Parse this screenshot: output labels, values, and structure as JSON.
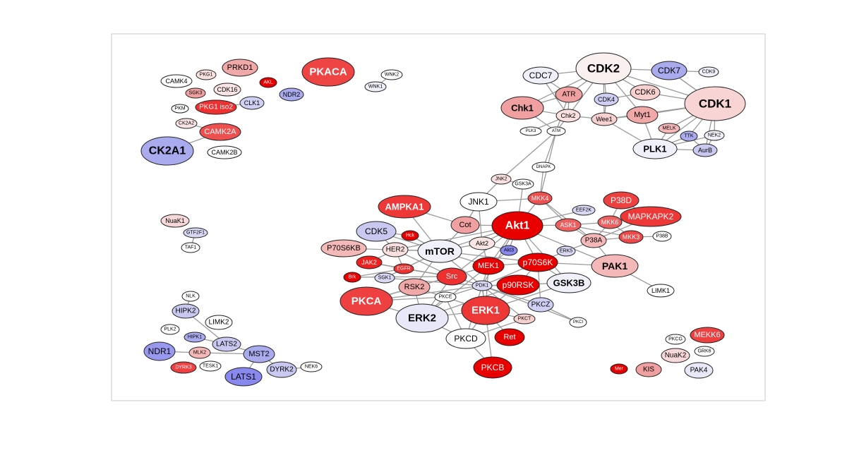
{
  "colors": {
    "background": "#ffffff",
    "frame": "#c8c8c8",
    "edge": "#9a9a9a",
    "node_stroke": "#222222",
    "strong_red": "#e80000",
    "red": "#ee3030",
    "salmon": "#f0a0a0",
    "light_pink": "#f8d8d8",
    "white": "#ffffff",
    "light_blue": "#d8d8f4",
    "blue": "#aaaaee",
    "strong_blue": "#8888ee"
  },
  "nodes": [
    {
      "id": "PKACA",
      "fill": "#ee4444"
    },
    {
      "id": "PRKD1",
      "fill": "#f0a8a8"
    },
    {
      "id": "PKG1",
      "fill": "#fbe0e0"
    },
    {
      "id": "CAMK4",
      "fill": "#ffffff"
    },
    {
      "id": "AKL",
      "fill": "#e80000"
    },
    {
      "id": "SGK3",
      "fill": "#f0a0a0"
    },
    {
      "id": "CDK16",
      "fill": "#fbe4e4"
    },
    {
      "id": "NDR2",
      "fill": "#aaaaee"
    },
    {
      "id": "WNK2",
      "fill": "#ffffff"
    },
    {
      "id": "WNK1",
      "fill": "#f0f0fa"
    },
    {
      "id": "PKM",
      "fill": "#ffffff"
    },
    {
      "id": "PKG1 iso2",
      "fill": "#ee3030"
    },
    {
      "id": "CLK1",
      "fill": "#d0d0f4"
    },
    {
      "id": "CK2A2",
      "fill": "#fbe4e4"
    },
    {
      "id": "CAMK2A",
      "fill": "#ee5050"
    },
    {
      "id": "CK2A1",
      "fill": "#aaaaee"
    },
    {
      "id": "CAMK2B",
      "fill": "#ffffff"
    },
    {
      "id": "CDK2",
      "fill": "#fbf0f0"
    },
    {
      "id": "CDC7",
      "fill": "#f0f0fa"
    },
    {
      "id": "CDK7",
      "fill": "#aaaaee"
    },
    {
      "id": "CDK9",
      "fill": "#f0f0fa"
    },
    {
      "id": "ATR",
      "fill": "#f0a0a0"
    },
    {
      "id": "CDK4",
      "fill": "#d0d0f4"
    },
    {
      "id": "CDK6",
      "fill": "#f8d0d0"
    },
    {
      "id": "CDK1",
      "fill": "#f8d4d4"
    },
    {
      "id": "Chk1",
      "fill": "#f0a0a0"
    },
    {
      "id": "Chk2",
      "fill": "#fbe0e0"
    },
    {
      "id": "Wee1",
      "fill": "#f8d0d0"
    },
    {
      "id": "Myt1",
      "fill": "#f0a8a8"
    },
    {
      "id": "MELK",
      "fill": "#f4b8b8"
    },
    {
      "id": "TTK",
      "fill": "#aaaaee"
    },
    {
      "id": "NEK2",
      "fill": "#f0f0fa"
    },
    {
      "id": "PLK3",
      "fill": "#ffffff"
    },
    {
      "id": "ATM",
      "fill": "#ffffff"
    },
    {
      "id": "PLK1",
      "fill": "#f0f0fa"
    },
    {
      "id": "AurB",
      "fill": "#c8c8f0"
    },
    {
      "id": "DNAPK",
      "fill": "#ffffff"
    },
    {
      "id": "JNK2",
      "fill": "#fbe0e0"
    },
    {
      "id": "GSK3A",
      "fill": "#ffffff"
    },
    {
      "id": "MKK4",
      "fill": "#ee5050"
    },
    {
      "id": "P38D",
      "fill": "#ee4040"
    },
    {
      "id": "AMPKA1",
      "fill": "#ee3838"
    },
    {
      "id": "JNK1",
      "fill": "#ffffff"
    },
    {
      "id": "EEF2K",
      "fill": "#d8d8f4"
    },
    {
      "id": "MAPKAPK2",
      "fill": "#ee3838"
    },
    {
      "id": "Akt1",
      "fill": "#e80000"
    },
    {
      "id": "CDK5",
      "fill": "#c8c8f0"
    },
    {
      "id": "Cot",
      "fill": "#f0a0a0"
    },
    {
      "id": "ASK1",
      "fill": "#ee6060"
    },
    {
      "id": "MKK6",
      "fill": "#ee6060"
    },
    {
      "id": "P38B",
      "fill": "#ffffff"
    },
    {
      "id": "Hck",
      "fill": "#e80000"
    },
    {
      "id": "MKK3",
      "fill": "#ee4848"
    },
    {
      "id": "P70S6KB",
      "fill": "#f4b8b8"
    },
    {
      "id": "HER2",
      "fill": "#fbe0e0"
    },
    {
      "id": "mTOR",
      "fill": "#f0f0fa"
    },
    {
      "id": "Akt2",
      "fill": "#fbe4e4"
    },
    {
      "id": "Akt3",
      "fill": "#8888ee"
    },
    {
      "id": "ERK5",
      "fill": "#d8d8f4"
    },
    {
      "id": "P38A",
      "fill": "#f4b8b8"
    },
    {
      "id": "JAK2",
      "fill": "#ee2020"
    },
    {
      "id": "EGFR",
      "fill": "#ee3030"
    },
    {
      "id": "MEK1",
      "fill": "#e80000"
    },
    {
      "id": "p70S6K",
      "fill": "#e80000"
    },
    {
      "id": "PAK1",
      "fill": "#f4b8b8"
    },
    {
      "id": "Brk",
      "fill": "#e80000"
    },
    {
      "id": "SGK1",
      "fill": "#d8d8f4"
    },
    {
      "id": "Src",
      "fill": "#ee3030"
    },
    {
      "id": "GSK3B",
      "fill": "#f0f0fa"
    },
    {
      "id": "RSK2",
      "fill": "#f0a8a8"
    },
    {
      "id": "PDK1",
      "fill": "#d8d8f4"
    },
    {
      "id": "p90RSK",
      "fill": "#e80000"
    },
    {
      "id": "LIMK1",
      "fill": "#ffffff"
    },
    {
      "id": "PKCA",
      "fill": "#ee4040"
    },
    {
      "id": "PKCE",
      "fill": "#ffffff"
    },
    {
      "id": "ERK1",
      "fill": "#ee3838"
    },
    {
      "id": "PKCZ",
      "fill": "#d0d0f4"
    },
    {
      "id": "ERK2",
      "fill": "#e8e8f8"
    },
    {
      "id": "PKCT",
      "fill": "#f8d0d0"
    },
    {
      "id": "PKCI",
      "fill": "#ffffff"
    },
    {
      "id": "PKCD",
      "fill": "#ffffff"
    },
    {
      "id": "Ret",
      "fill": "#e80000"
    },
    {
      "id": "PKCB",
      "fill": "#e80000"
    },
    {
      "id": "NuaK1",
      "fill": "#f8d8d8"
    },
    {
      "id": "GTF2F1",
      "fill": "#d8d8f4"
    },
    {
      "id": "TAF1",
      "fill": "#ffffff"
    },
    {
      "id": "NLK",
      "fill": "#ffffff"
    },
    {
      "id": "HIPK2",
      "fill": "#c8c8f0"
    },
    {
      "id": "LIMK2",
      "fill": "#ffffff"
    },
    {
      "id": "PLK2",
      "fill": "#ffffff"
    },
    {
      "id": "HIPK1",
      "fill": "#aaaaee"
    },
    {
      "id": "LATS2",
      "fill": "#c8c8f0"
    },
    {
      "id": "NDR1",
      "fill": "#9898ee"
    },
    {
      "id": "MLK2",
      "fill": "#f4b8b8"
    },
    {
      "id": "MST2",
      "fill": "#aaaaee"
    },
    {
      "id": "DYRK3",
      "fill": "#ee4040"
    },
    {
      "id": "TESK1",
      "fill": "#ffffff"
    },
    {
      "id": "LATS1",
      "fill": "#8888ee"
    },
    {
      "id": "DYRK2",
      "fill": "#c8c8f0"
    },
    {
      "id": "NEK6",
      "fill": "#ffffff"
    },
    {
      "id": "MEKK6",
      "fill": "#ee4040"
    },
    {
      "id": "PKCG",
      "fill": "#ffffff"
    },
    {
      "id": "NuaK2",
      "fill": "#f8d8d8"
    },
    {
      "id": "GRK6",
      "fill": "#ffffff"
    },
    {
      "id": "Mer",
      "fill": "#e80000"
    },
    {
      "id": "KIS",
      "fill": "#f0a0a0"
    },
    {
      "id": "PAK4",
      "fill": "#e8e8f8"
    }
  ],
  "edges": [
    [
      "PKG1 iso2",
      "CLK1"
    ],
    [
      "CK2A2",
      "CAMK2A"
    ],
    [
      "CAMK2A",
      "CK2A1"
    ],
    [
      "WNK2",
      "WNK1"
    ],
    [
      "CDC7",
      "CDK2"
    ],
    [
      "CDK2",
      "CDK7"
    ],
    [
      "CDK7",
      "CDK9"
    ],
    [
      "CDK2",
      "ATR"
    ],
    [
      "CDK2",
      "CDK4"
    ],
    [
      "CDK2",
      "CDK6"
    ],
    [
      "CDK2",
      "CDK1"
    ],
    [
      "CDK2",
      "Chk1"
    ],
    [
      "CDK2",
      "Chk2"
    ],
    [
      "CDK2",
      "Myt1"
    ],
    [
      "CDK2",
      "Wee1"
    ],
    [
      "CDK7",
      "CDK1"
    ],
    [
      "CDK4",
      "CDK6"
    ],
    [
      "CDK6",
      "CDK1"
    ],
    [
      "CDK1",
      "Myt1"
    ],
    [
      "CDK1",
      "Wee1"
    ],
    [
      "CDK1",
      "PLK1"
    ],
    [
      "CDK1",
      "MELK"
    ],
    [
      "CDK1",
      "TTK"
    ],
    [
      "CDK1",
      "NEK2"
    ],
    [
      "CDK1",
      "AurB"
    ],
    [
      "CDK1",
      "CDK7"
    ],
    [
      "CDC7",
      "ATR"
    ],
    [
      "CDC7",
      "Chk2"
    ],
    [
      "ATR",
      "Chk1"
    ],
    [
      "ATR",
      "Chk2"
    ],
    [
      "ATR",
      "ATM"
    ],
    [
      "Chk1",
      "Chk2"
    ],
    [
      "Chk1",
      "ATM"
    ],
    [
      "Chk2",
      "ATM"
    ],
    [
      "Chk2",
      "PLK3"
    ],
    [
      "Chk2",
      "Wee1"
    ],
    [
      "Wee1",
      "Myt1"
    ],
    [
      "Wee1",
      "PLK1"
    ],
    [
      "CDK4",
      "Wee1"
    ],
    [
      "PLK1",
      "TTK"
    ],
    [
      "PLK1",
      "AurB"
    ],
    [
      "PLK1",
      "MELK"
    ],
    [
      "PLK1",
      "Myt1"
    ],
    [
      "TTK",
      "AurB"
    ],
    [
      "NEK2",
      "AurB"
    ],
    [
      "PLK1",
      "NEK2"
    ],
    [
      "ATM",
      "DNAPK"
    ],
    [
      "ATM",
      "JNK2"
    ],
    [
      "ATM",
      "MKK4"
    ],
    [
      "DNAPK",
      "MKK4"
    ],
    [
      "JNK2",
      "GSK3A"
    ],
    [
      "JNK2",
      "JNK1"
    ],
    [
      "MKK4",
      "JNK1"
    ],
    [
      "MKK4",
      "Akt1"
    ],
    [
      "MKK4",
      "P38A"
    ],
    [
      "MKK4",
      "ASK1"
    ],
    [
      "GSK3A",
      "Akt1"
    ],
    [
      "JNK1",
      "Cot"
    ],
    [
      "JNK1",
      "Akt2"
    ],
    [
      "Akt1",
      "Cot"
    ],
    [
      "Akt1",
      "mTOR"
    ],
    [
      "Akt1",
      "Akt2"
    ],
    [
      "Akt1",
      "Akt3"
    ],
    [
      "Akt1",
      "MEK1"
    ],
    [
      "Akt1",
      "p70S6K"
    ],
    [
      "Akt1",
      "GSK3B"
    ],
    [
      "Akt1",
      "ASK1"
    ],
    [
      "Akt1",
      "PAK1"
    ],
    [
      "Akt1",
      "HER2"
    ],
    [
      "Akt1",
      "Src"
    ],
    [
      "Akt1",
      "PDK1"
    ],
    [
      "Akt1",
      "EEF2K"
    ],
    [
      "ASK1",
      "MKK6"
    ],
    [
      "ASK1",
      "P38A"
    ],
    [
      "ASK1",
      "MKK3"
    ],
    [
      "MKK6",
      "P38D"
    ],
    [
      "MKK6",
      "MAPKAPK2"
    ],
    [
      "MKK6",
      "MKK3"
    ],
    [
      "MKK6",
      "P38A"
    ],
    [
      "MKK3",
      "P38B"
    ],
    [
      "MKK3",
      "P38A"
    ],
    [
      "P38D",
      "MAPKAPK2"
    ],
    [
      "P38A",
      "MAPKAPK2"
    ],
    [
      "P38A",
      "PAK1"
    ],
    [
      "P38A",
      "ERK5"
    ],
    [
      "PAK1",
      "LIMK1"
    ],
    [
      "PAK1",
      "p70S6K"
    ],
    [
      "CDK5",
      "mTOR"
    ],
    [
      "CDK5",
      "Hck"
    ],
    [
      "CDK5",
      "HER2"
    ],
    [
      "AMPKA1",
      "mTOR"
    ],
    [
      "AMPKA1",
      "Cot"
    ],
    [
      "P70S6KB",
      "mTOR"
    ],
    [
      "HER2",
      "mTOR"
    ],
    [
      "HER2",
      "JAK2"
    ],
    [
      "HER2",
      "EGFR"
    ],
    [
      "HER2",
      "Src"
    ],
    [
      "mTOR",
      "Akt2"
    ],
    [
      "mTOR",
      "p70S6K"
    ],
    [
      "mTOR",
      "MEK1"
    ],
    [
      "mTOR",
      "PDK1"
    ],
    [
      "mTOR",
      "RSK2"
    ],
    [
      "mTOR",
      "EGFR"
    ],
    [
      "mTOR",
      "Hck"
    ],
    [
      "mTOR",
      "Cot"
    ],
    [
      "Akt2",
      "Akt3"
    ],
    [
      "Akt2",
      "MEK1"
    ],
    [
      "Akt3",
      "MEK1"
    ],
    [
      "MEK1",
      "p70S6K"
    ],
    [
      "MEK1",
      "ERK1"
    ],
    [
      "MEK1",
      "ERK2"
    ],
    [
      "MEK1",
      "Src"
    ],
    [
      "MEK1",
      "PDK1"
    ],
    [
      "p70S6K",
      "PDK1"
    ],
    [
      "p70S6K",
      "p90RSK"
    ],
    [
      "p70S6K",
      "GSK3B"
    ],
    [
      "p70S6K",
      "ERK5"
    ],
    [
      "p70S6K",
      "PKCZ"
    ],
    [
      "JAK2",
      "EGFR"
    ],
    [
      "JAK2",
      "Src"
    ],
    [
      "EGFR",
      "Src"
    ],
    [
      "EGFR",
      "SGK1"
    ],
    [
      "Brk",
      "EGFR"
    ],
    [
      "SGK1",
      "PDK1"
    ],
    [
      "Src",
      "RSK2"
    ],
    [
      "Src",
      "PDK1"
    ],
    [
      "Src",
      "PKCA"
    ],
    [
      "Src",
      "ERK2"
    ],
    [
      "Src",
      "Brk"
    ],
    [
      "RSK2",
      "ERK2"
    ],
    [
      "RSK2",
      "ERK1"
    ],
    [
      "RSK2",
      "PKCA"
    ],
    [
      "PDK1",
      "PKCE"
    ],
    [
      "PDK1",
      "PKCZ"
    ],
    [
      "PDK1",
      "PKCD"
    ],
    [
      "PDK1",
      "PKCA"
    ],
    [
      "PDK1",
      "p90RSK"
    ],
    [
      "PDK1",
      "PKCT"
    ],
    [
      "PDK1",
      "PKCI"
    ],
    [
      "PDK1",
      "PKCB"
    ],
    [
      "PDK1",
      "ERK1"
    ],
    [
      "PDK1",
      "GSK3B"
    ],
    [
      "p90RSK",
      "ERK1"
    ],
    [
      "p90RSK",
      "ERK2"
    ],
    [
      "ERK1",
      "ERK2"
    ],
    [
      "ERK1",
      "PKCD"
    ],
    [
      "ERK1",
      "Ret"
    ],
    [
      "ERK1",
      "PKCT"
    ],
    [
      "ERK2",
      "PKCA"
    ],
    [
      "ERK2",
      "PKCE"
    ],
    [
      "ERK2",
      "PKCD"
    ],
    [
      "PKCD",
      "PKCB"
    ],
    [
      "PKCD",
      "PKCE"
    ],
    [
      "PKCD",
      "PKCT"
    ],
    [
      "PKCA",
      "PKCE"
    ],
    [
      "PKCZ",
      "PKCI"
    ],
    [
      "GSK3B",
      "ERK1"
    ],
    [
      "GTF2F1",
      "TAF1"
    ],
    [
      "HIPK2",
      "NLK"
    ],
    [
      "HIPK1",
      "LATS2"
    ],
    [
      "LATS2",
      "MST2"
    ],
    [
      "MST2",
      "LATS1"
    ],
    [
      "MST2",
      "DYRK2"
    ],
    [
      "MST2",
      "MLK2"
    ],
    [
      "NDR1",
      "MLK2"
    ],
    [
      "DYRK2",
      "NEK6"
    ],
    [
      "LATS2",
      "HIPK2"
    ]
  ]
}
